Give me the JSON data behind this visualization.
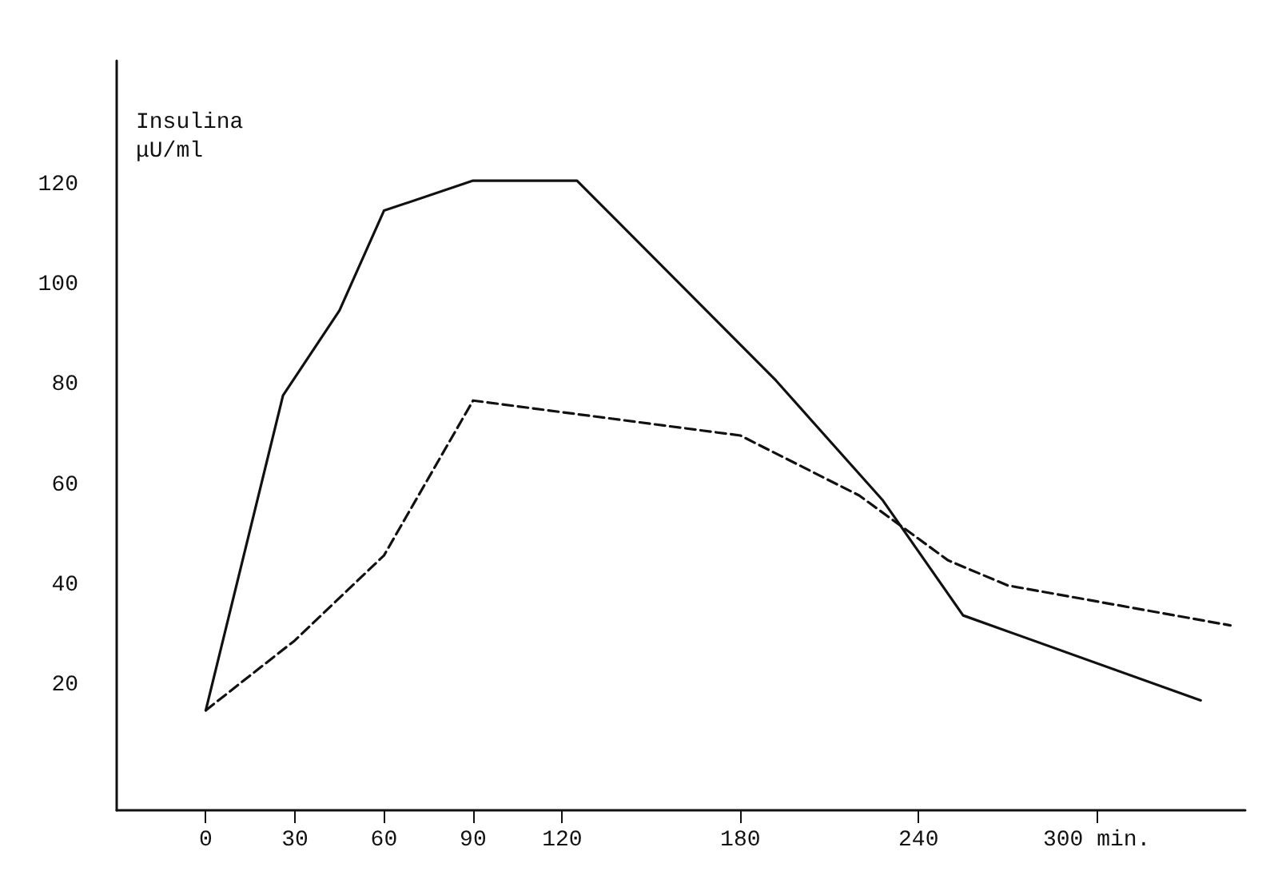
{
  "chart_data": {
    "type": "line",
    "ylabel": "Insulina\nμU/ml",
    "xlim": [
      -30,
      350
    ],
    "ylim": [
      -5,
      145
    ],
    "xticks": [
      0,
      30,
      60,
      90,
      120,
      180,
      240,
      {
        "value": 300,
        "label": "300 min."
      }
    ],
    "yticks": [
      20,
      40,
      60,
      80,
      100,
      120
    ],
    "grid": false,
    "marker": "none",
    "series": [
      {
        "color": "#111111",
        "line_style": "solid",
        "x": [
          0,
          26,
          45,
          60,
          90,
          125,
          192,
          228,
          255,
          335
        ],
        "values": [
          15,
          78,
          95,
          115,
          121,
          121,
          81,
          57,
          34,
          17
        ]
      },
      {
        "color": "#111111",
        "line_style": "dashed",
        "x": [
          0,
          30,
          60,
          90,
          180,
          220,
          250,
          270,
          345
        ],
        "values": [
          15,
          29,
          46,
          77,
          70,
          58,
          45,
          40,
          32
        ]
      }
    ]
  }
}
